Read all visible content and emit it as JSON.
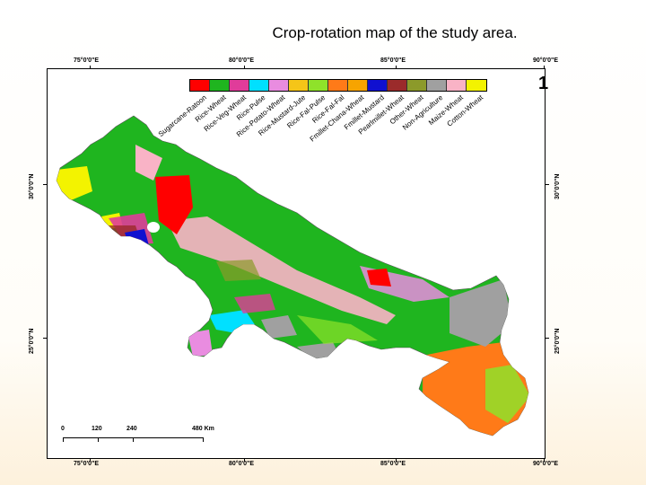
{
  "title": "Crop-rotation map of the study area.",
  "longitude_labels": [
    "75°0'0\"E",
    "80°0'0\"E",
    "85°0'0\"E",
    "90°0'0\"E"
  ],
  "latitude_labels": [
    "30°0'0\"N",
    "25°0'0\"N"
  ],
  "legend": {
    "number": "1",
    "items": [
      {
        "label": "Sugarcane-Ratoon",
        "color": "#ff0000"
      },
      {
        "label": "Rice-Wheat",
        "color": "#1fb51f"
      },
      {
        "label": "Rice-Veg-Wheat",
        "color": "#e03c9a"
      },
      {
        "label": "Rice-Pulse",
        "color": "#00e0ff"
      },
      {
        "label": "Rice-Potato-Wheat",
        "color": "#e98ce0"
      },
      {
        "label": "Rice-Mustard-Jute",
        "color": "#f5c518"
      },
      {
        "label": "Rice-Fal-Pulse",
        "color": "#8fe22a"
      },
      {
        "label": "Rice-Fal-Fal",
        "color": "#ff7a18"
      },
      {
        "label": "Fmillet-Chana-Wheat",
        "color": "#f7a400"
      },
      {
        "label": "Fmillet-Mustard",
        "color": "#1010d0"
      },
      {
        "label": "Pearlmillet-Wheat",
        "color": "#9b2b2b"
      },
      {
        "label": "Other-Wheat",
        "color": "#8c9a2a"
      },
      {
        "label": "Non-Agriculture",
        "color": "#a0a0a0"
      },
      {
        "label": "Maize-Wheat",
        "color": "#f9b3c6"
      },
      {
        "label": "Cotton-Wheat",
        "color": "#f3f300"
      }
    ]
  },
  "scale_bar": {
    "ticks": [
      "0",
      "120",
      "240",
      "480 Km"
    ]
  },
  "colors": {
    "rice_wheat": "#1fb51f",
    "non_agriculture": "#a0a0a0",
    "rice_fal_fal": "#ff7a18",
    "maize_wheat": "#f9b3c6",
    "sugarcane": "#ff0000",
    "cotton_wheat": "#f3f300",
    "fmillet_mustard": "#1010d0",
    "rice_pulse": "#00e0ff",
    "rice_fal_pulse": "#8fe22a",
    "rice_veg_wheat": "#e03c9a",
    "pearlmillet_wheat": "#9b2b2b",
    "rice_potato_wheat": "#e98ce0"
  }
}
